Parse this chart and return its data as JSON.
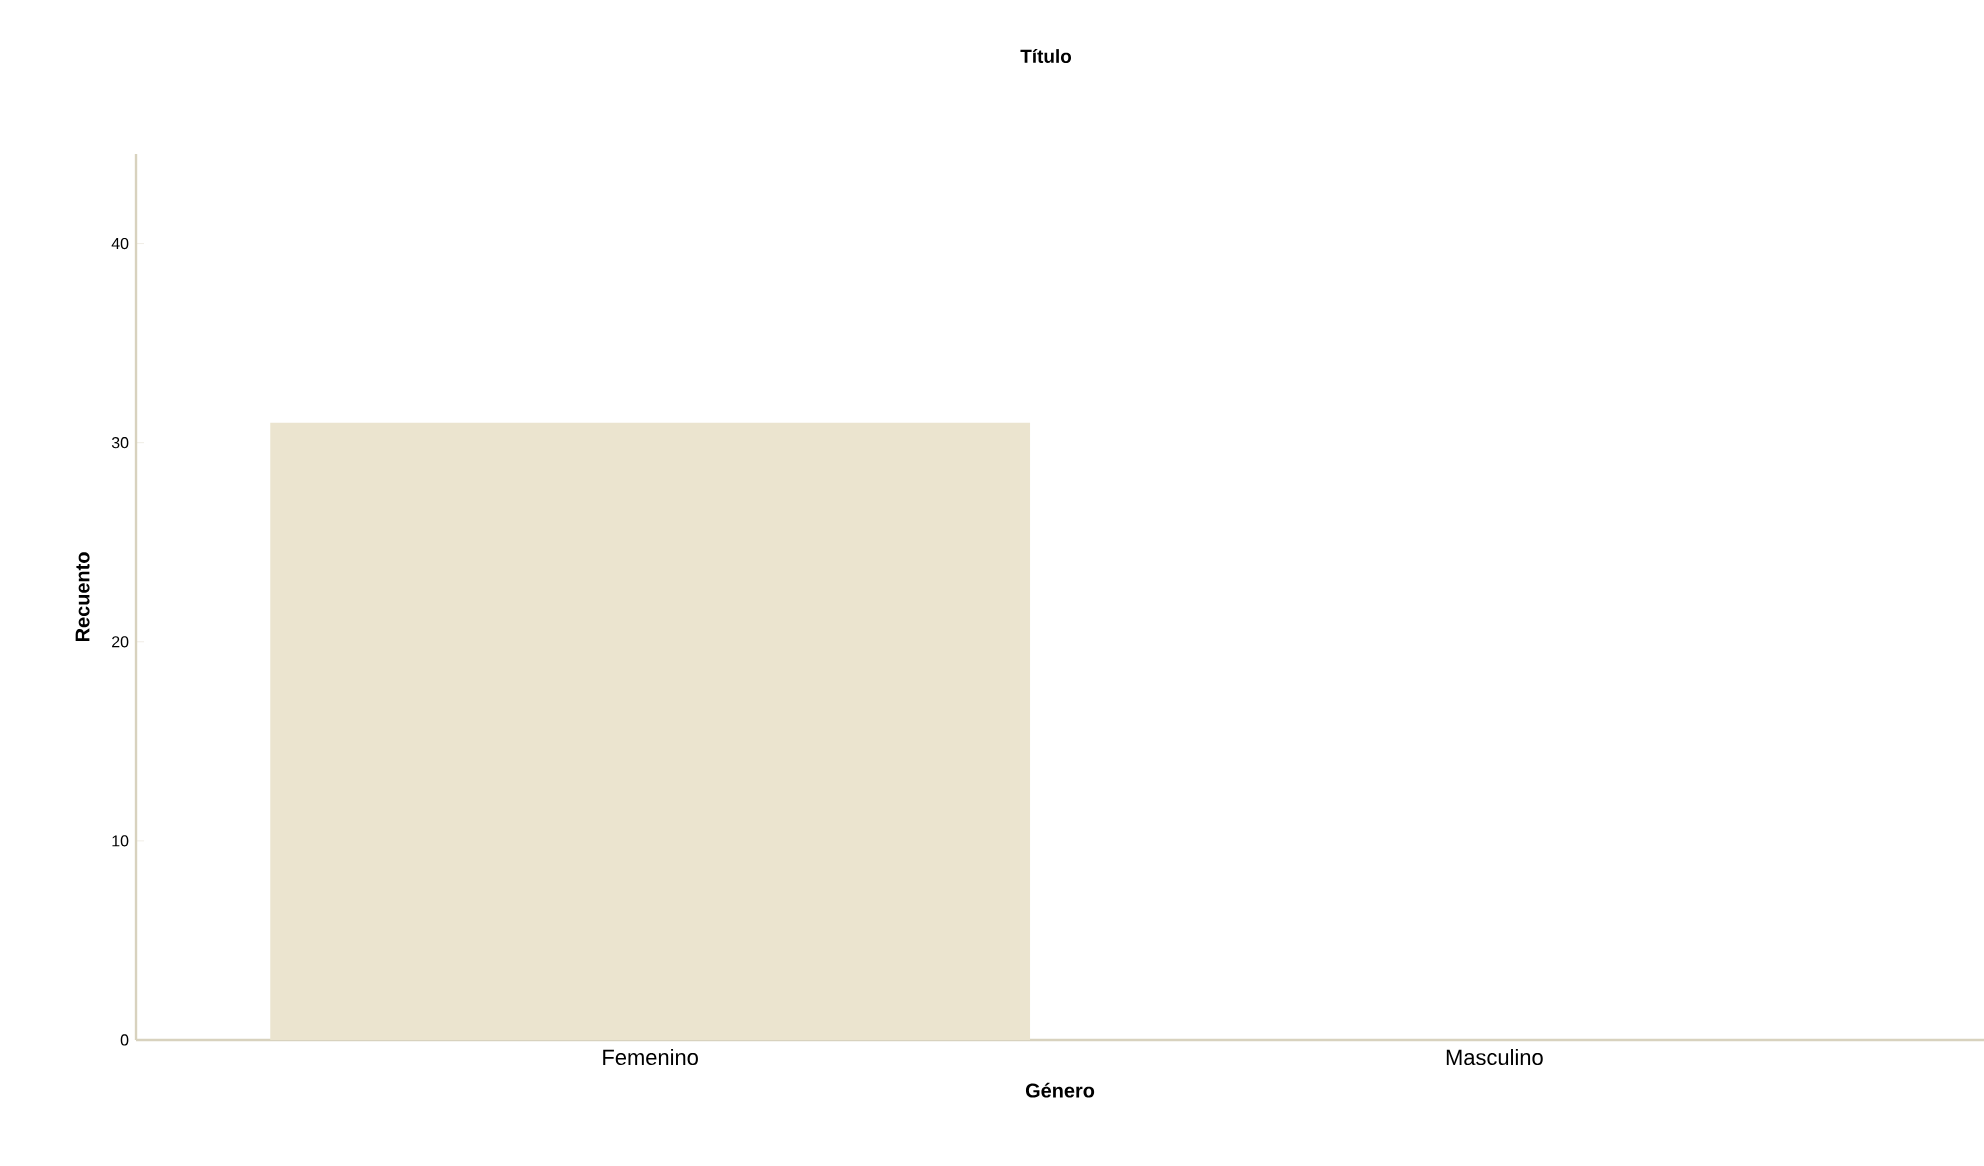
{
  "chart_data": {
    "type": "bar",
    "title": "Título",
    "xlabel": "Género",
    "ylabel": "Recuento",
    "categories": [
      "Femenino",
      "Masculino"
    ],
    "values": [
      31,
      0
    ],
    "color": "#ebe4cf",
    "ylim": [
      0,
      44.5
    ],
    "yticks": [
      0,
      10,
      20,
      30,
      40
    ]
  }
}
